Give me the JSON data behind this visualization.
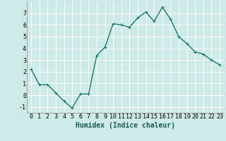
{
  "x": [
    0,
    1,
    2,
    3,
    4,
    5,
    6,
    7,
    8,
    9,
    10,
    11,
    12,
    13,
    14,
    15,
    16,
    17,
    18,
    19,
    20,
    21,
    22,
    23
  ],
  "y": [
    2.2,
    0.9,
    0.9,
    0.2,
    -0.5,
    -1.1,
    0.1,
    0.1,
    3.4,
    4.1,
    6.1,
    6.0,
    5.8,
    6.6,
    7.1,
    6.3,
    7.5,
    6.5,
    5.0,
    4.4,
    3.7,
    3.5,
    3.0,
    2.6
  ],
  "line_color": "#1a7a6e",
  "marker": "+",
  "marker_size": 3,
  "xlabel": "Humidex (Indice chaleur)",
  "xlim": [
    -0.5,
    23.5
  ],
  "ylim": [
    -1.5,
    8.0
  ],
  "yticks": [
    -1,
    0,
    1,
    2,
    3,
    4,
    5,
    6,
    7
  ],
  "xticks": [
    0,
    1,
    2,
    3,
    4,
    5,
    6,
    7,
    8,
    9,
    10,
    11,
    12,
    13,
    14,
    15,
    16,
    17,
    18,
    19,
    20,
    21,
    22,
    23
  ],
  "bg_color": "#ceeae7",
  "grid_color": "#ffffff",
  "tick_fontsize": 6,
  "xlabel_fontsize": 7,
  "line_width": 1.0,
  "marker_edge_width": 0.8
}
